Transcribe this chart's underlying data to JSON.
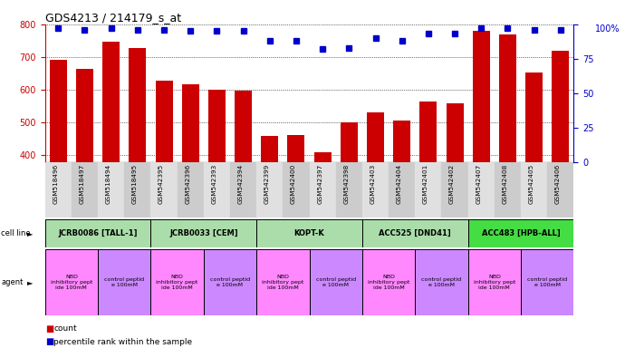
{
  "title": "GDS4213 / 214179_s_at",
  "gsm_labels": [
    "GSM518496",
    "GSM518497",
    "GSM518494",
    "GSM518495",
    "GSM542395",
    "GSM542396",
    "GSM542393",
    "GSM542394",
    "GSM542399",
    "GSM542400",
    "GSM542397",
    "GSM542398",
    "GSM542403",
    "GSM542404",
    "GSM542401",
    "GSM542402",
    "GSM542407",
    "GSM542408",
    "GSM542405",
    "GSM542406"
  ],
  "bar_values": [
    693,
    665,
    748,
    728,
    628,
    618,
    600,
    598,
    460,
    463,
    408,
    502,
    532,
    507,
    565,
    560,
    779,
    770,
    652,
    718
  ],
  "percentile_values": [
    97,
    96,
    97,
    96,
    96,
    95,
    95,
    95,
    88,
    88,
    82,
    83,
    90,
    88,
    93,
    93,
    97,
    97,
    96,
    96
  ],
  "cell_lines": [
    {
      "label": "JCRB0086 [TALL-1]",
      "start": 0,
      "end": 4,
      "color": "#aaddaa"
    },
    {
      "label": "JCRB0033 [CEM]",
      "start": 4,
      "end": 8,
      "color": "#aaddaa"
    },
    {
      "label": "KOPT-K",
      "start": 8,
      "end": 12,
      "color": "#aaddaa"
    },
    {
      "label": "ACC525 [DND41]",
      "start": 12,
      "end": 16,
      "color": "#aaddaa"
    },
    {
      "label": "ACC483 [HPB-ALL]",
      "start": 16,
      "end": 20,
      "color": "#44dd44"
    }
  ],
  "agents": [
    {
      "label": "NBD\ninhibitory pept\nide 100mM",
      "start": 0,
      "end": 2,
      "color": "#ff88ff"
    },
    {
      "label": "control peptid\ne 100mM",
      "start": 2,
      "end": 4,
      "color": "#cc88ff"
    },
    {
      "label": "NBD\ninhibitory pept\nide 100mM",
      "start": 4,
      "end": 6,
      "color": "#ff88ff"
    },
    {
      "label": "control peptid\ne 100mM",
      "start": 6,
      "end": 8,
      "color": "#cc88ff"
    },
    {
      "label": "NBD\ninhibitory pept\nide 100mM",
      "start": 8,
      "end": 10,
      "color": "#ff88ff"
    },
    {
      "label": "control peptid\ne 100mM",
      "start": 10,
      "end": 12,
      "color": "#cc88ff"
    },
    {
      "label": "NBD\ninhibitory pept\nide 100mM",
      "start": 12,
      "end": 14,
      "color": "#ff88ff"
    },
    {
      "label": "control peptid\ne 100mM",
      "start": 14,
      "end": 16,
      "color": "#cc88ff"
    },
    {
      "label": "NBD\ninhibitory pept\nide 100mM",
      "start": 16,
      "end": 18,
      "color": "#ff88ff"
    },
    {
      "label": "control peptid\ne 100mM",
      "start": 18,
      "end": 20,
      "color": "#cc88ff"
    }
  ],
  "ylim_left": [
    380,
    800
  ],
  "yticks_left": [
    400,
    500,
    600,
    700,
    800
  ],
  "ylim_right": [
    0,
    100
  ],
  "yticks_right": [
    0,
    25,
    50,
    75,
    100
  ],
  "bar_color": "#cc0000",
  "dot_color": "#0000cc",
  "bg_color": "#ffffff",
  "axis_color_left": "#cc0000",
  "axis_color_right": "#0000cc"
}
